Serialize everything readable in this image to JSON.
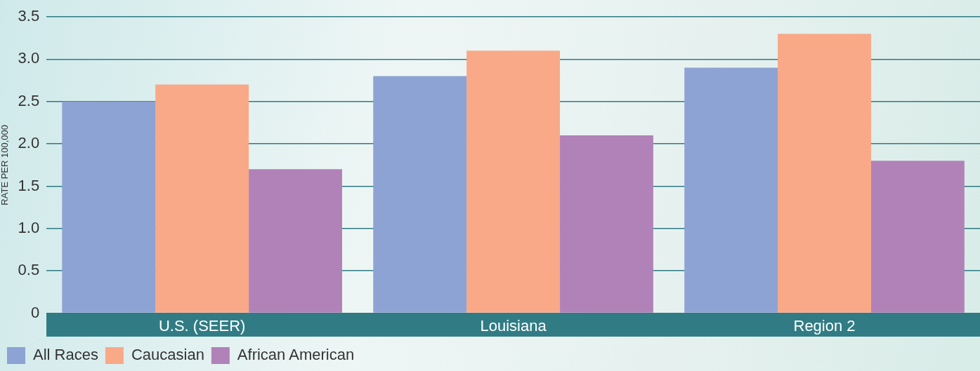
{
  "chart_data": {
    "type": "bar",
    "ylabel": "RATE PER 100,000",
    "categories": [
      "U.S. (SEER)",
      "Louisiana",
      "Region 2"
    ],
    "series": [
      {
        "name": "All Races",
        "color": "#8da3d4",
        "values": [
          2.5,
          2.8,
          2.9
        ]
      },
      {
        "name": "Caucasian",
        "color": "#f9a987",
        "values": [
          2.7,
          3.1,
          3.3
        ]
      },
      {
        "name": "African American",
        "color": "#b182b8",
        "values": [
          1.7,
          2.1,
          1.8
        ]
      }
    ],
    "ylim": [
      0,
      3.5
    ],
    "yticks": [
      {
        "value": 0,
        "label": "0"
      },
      {
        "value": 0.5,
        "label": "0.5"
      },
      {
        "value": 1,
        "label": "1.0"
      },
      {
        "value": 1.5,
        "label": "1.5"
      },
      {
        "value": 2,
        "label": "2.0"
      },
      {
        "value": 2.5,
        "label": "2.5"
      },
      {
        "value": 3,
        "label": "3.0"
      },
      {
        "value": 3.5,
        "label": "3.5"
      }
    ],
    "grid": "y",
    "legend": "bottom left"
  }
}
